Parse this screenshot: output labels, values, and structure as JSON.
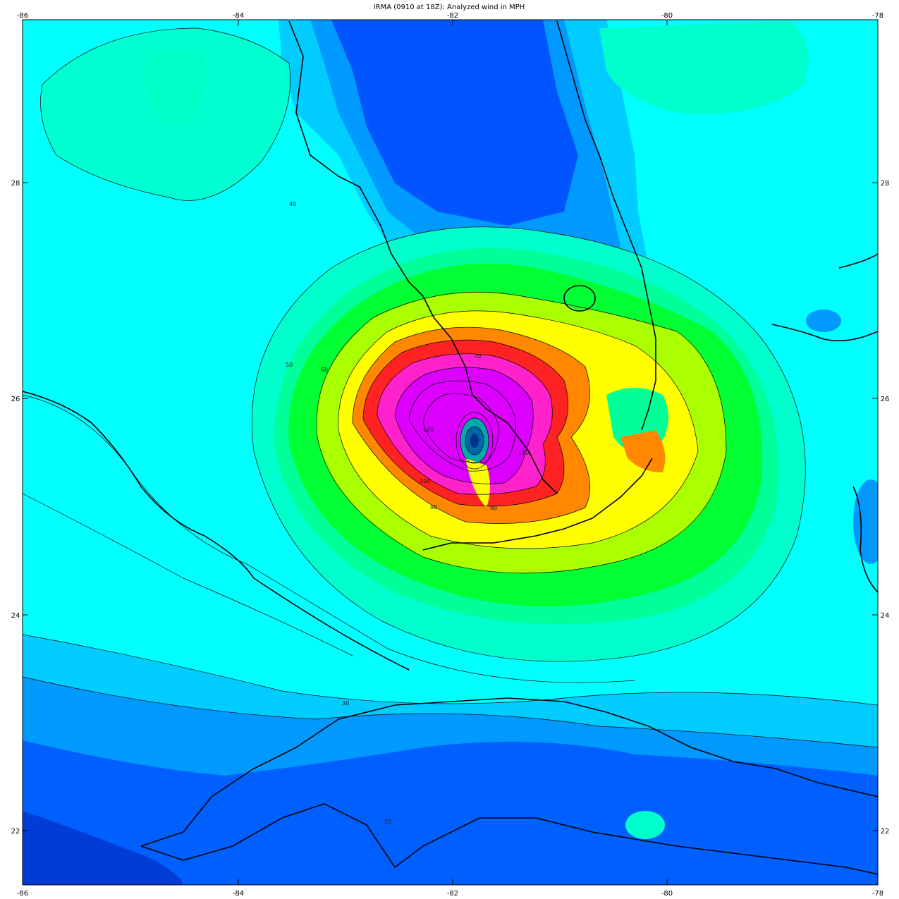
{
  "title": "IRMA (0910 at 18Z): Analyzed wind in MPH",
  "lon_ticks": [
    "-86",
    "-84",
    "-82",
    "-80",
    "-78"
  ],
  "lat_ticks": [
    "28",
    "26",
    "24",
    "22"
  ],
  "contour_labels": [
    "20",
    "30",
    "40",
    "50",
    "60",
    "70",
    "80",
    "90",
    "100",
    "110",
    "120"
  ],
  "colors": {
    "background_cyan": "#00ffff",
    "low_blue": "#0055ff",
    "blue": "#0099ff",
    "sky": "#00ccff",
    "aqua_green": "#00ffcc",
    "green_light": "#00ff99",
    "green": "#00ff33",
    "yellow_green": "#aaff00",
    "yellow": "#ffff00",
    "orange": "#ff8800",
    "red": "#ff2222",
    "magenta": "#ff22cc",
    "violet": "#dd00ff",
    "eye": "#00aaaa"
  }
}
